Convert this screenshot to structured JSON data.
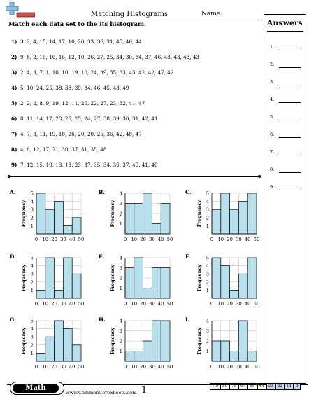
{
  "header": {
    "title": "Matching Histograms",
    "name_label": "Name:",
    "instruction": "Match each data set to the its histogram."
  },
  "answers": {
    "title": "Answers",
    "numbers": [
      "1.",
      "2.",
      "3.",
      "4.",
      "5.",
      "6.",
      "7.",
      "8.",
      "9."
    ]
  },
  "problems": [
    {
      "num": "1)",
      "text": "3, 2, 4, 15, 14, 17, 10, 20, 33, 36, 31, 45, 46, 44"
    },
    {
      "num": "2)",
      "text": "9, 8, 2, 16, 16, 16, 12, 10, 26, 27, 25, 34, 30, 34, 37, 46, 43, 43, 43, 43"
    },
    {
      "num": "3)",
      "text": "2, 4, 3, 7, 1, 10, 10, 19, 10, 24, 39, 35, 33, 43, 42, 42, 47, 42"
    },
    {
      "num": "4)",
      "text": "5, 10, 24, 25, 38, 38, 39, 34, 46, 45, 48, 49"
    },
    {
      "num": "5)",
      "text": "2, 2, 2, 8, 9, 19, 12, 11, 26, 22, 27, 23, 32, 41, 47"
    },
    {
      "num": "6)",
      "text": "8, 11, 14, 17, 28, 25, 25, 24, 27, 38, 39, 30, 31, 42, 41"
    },
    {
      "num": "7)",
      "text": "4, 7, 3, 11, 19, 18, 26, 20, 20, 25, 36, 42, 48, 47"
    },
    {
      "num": "8)",
      "text": "4, 8, 12, 17, 21, 30, 37, 31, 35, 48"
    },
    {
      "num": "9)",
      "text": "7, 12, 15, 19, 13, 13, 23, 37, 35, 34, 36, 37, 49, 41, 40"
    }
  ],
  "chart_data": [
    {
      "letter": "A.",
      "type": "bar",
      "ylabel": "Frequency",
      "x_ticks": [
        "0",
        "10",
        "20",
        "30",
        "40",
        "50"
      ],
      "y_ticks": [
        "1",
        "2",
        "3",
        "4",
        "5"
      ],
      "ylim": [
        0,
        5
      ],
      "values": [
        5,
        3,
        4,
        1,
        2
      ]
    },
    {
      "letter": "B.",
      "type": "bar",
      "ylabel": "Frequency",
      "x_ticks": [
        "0",
        "10",
        "20",
        "30",
        "40",
        "50"
      ],
      "y_ticks": [
        "1",
        "2",
        "3",
        "4"
      ],
      "ylim": [
        0,
        4
      ],
      "values": [
        3,
        3,
        4,
        1,
        3
      ]
    },
    {
      "letter": "C.",
      "type": "bar",
      "ylabel": "Frequency",
      "x_ticks": [
        "0",
        "10",
        "20",
        "30",
        "40",
        "50"
      ],
      "y_ticks": [
        "1",
        "2",
        "3",
        "4",
        "5"
      ],
      "ylim": [
        0,
        5
      ],
      "values": [
        3,
        5,
        3,
        4,
        5
      ]
    },
    {
      "letter": "D.",
      "type": "bar",
      "ylabel": "Frequency",
      "x_ticks": [
        "0",
        "10",
        "20",
        "30",
        "40",
        "50"
      ],
      "y_ticks": [
        "1",
        "2",
        "3",
        "4",
        "5"
      ],
      "ylim": [
        0,
        5
      ],
      "values": [
        1,
        5,
        1,
        5,
        3
      ]
    },
    {
      "letter": "E.",
      "type": "bar",
      "ylabel": "Frequency",
      "x_ticks": [
        "0",
        "10",
        "20",
        "30",
        "40",
        "50"
      ],
      "y_ticks": [
        "1",
        "2",
        "3",
        "4"
      ],
      "ylim": [
        0,
        4
      ],
      "values": [
        3,
        4,
        1,
        3,
        3
      ]
    },
    {
      "letter": "F.",
      "type": "bar",
      "ylabel": "Frequency",
      "x_ticks": [
        "0",
        "10",
        "20",
        "30",
        "40",
        "50"
      ],
      "y_ticks": [
        "1",
        "2",
        "3",
        "4",
        "5"
      ],
      "ylim": [
        0,
        5
      ],
      "values": [
        5,
        4,
        1,
        3,
        5
      ]
    },
    {
      "letter": "G.",
      "type": "bar",
      "ylabel": "Frequency",
      "x_ticks": [
        "0",
        "10",
        "20",
        "30",
        "40",
        "50"
      ],
      "y_ticks": [
        "1",
        "2",
        "3",
        "4",
        "5"
      ],
      "ylim": [
        0,
        5
      ],
      "values": [
        1,
        3,
        5,
        4,
        2
      ]
    },
    {
      "letter": "H.",
      "type": "bar",
      "ylabel": "Frequency",
      "x_ticks": [
        "0",
        "10",
        "20",
        "30",
        "40",
        "50"
      ],
      "y_ticks": [
        "1",
        "2",
        "3",
        "4"
      ],
      "ylim": [
        0,
        4
      ],
      "values": [
        1,
        1,
        2,
        4,
        4
      ]
    },
    {
      "letter": "I.",
      "type": "bar",
      "ylabel": "Frequency",
      "x_ticks": [
        "0",
        "10",
        "20",
        "30",
        "40",
        "50"
      ],
      "y_ticks": [
        "1",
        "2",
        "3",
        "4"
      ],
      "ylim": [
        0,
        4
      ],
      "values": [
        2,
        2,
        1,
        4,
        1
      ]
    }
  ],
  "footer": {
    "badge": "Math",
    "site": "www.CommonCoreSheets.com",
    "page": "1",
    "scores": [
      "1-9",
      "89",
      "78",
      "67",
      "56",
      "44",
      "33",
      "22",
      "11",
      "0"
    ]
  },
  "colors": {
    "bar_fill": "#b7e0ec",
    "score_highlight": "#c9d6ec"
  }
}
